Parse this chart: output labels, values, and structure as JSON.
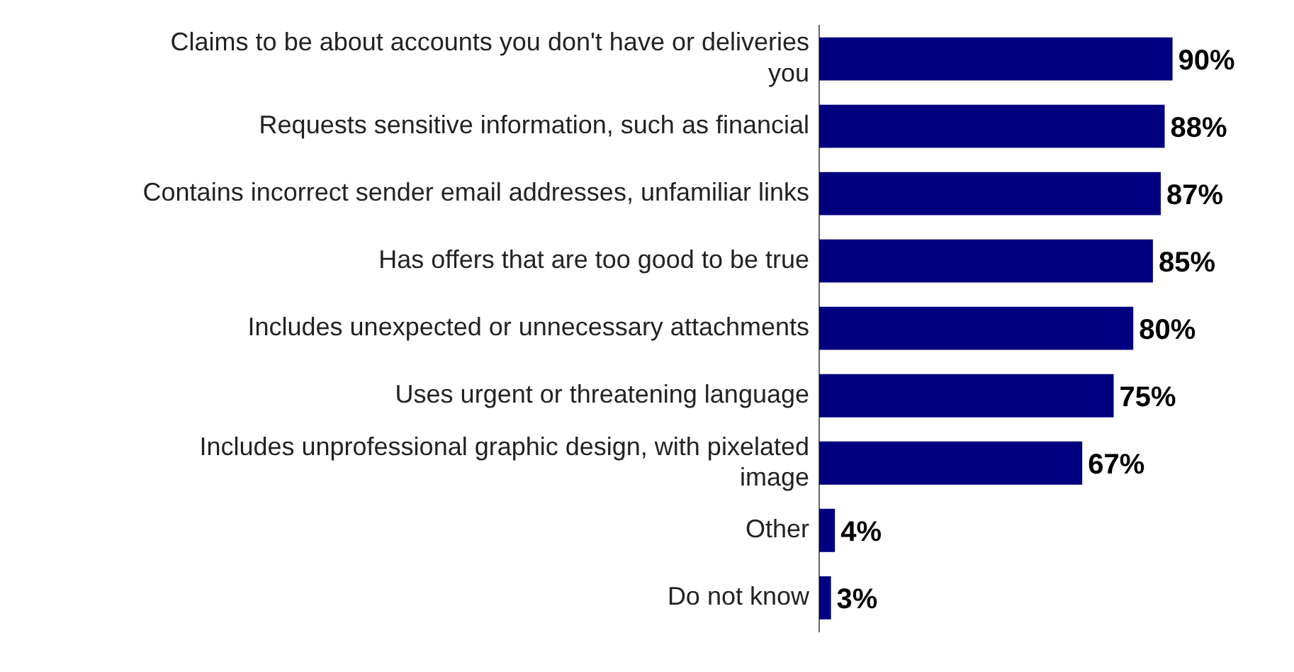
{
  "chart_data": {
    "type": "bar",
    "orientation": "horizontal",
    "categories": [
      "Claims to be about accounts you don't have or deliveries you",
      "Requests sensitive information, such as financial",
      "Contains incorrect sender email addresses, unfamiliar links",
      "Has offers that are too good to be true",
      "Includes unexpected or unnecessary attachments",
      "Uses urgent or threatening language",
      "Includes unprofessional graphic design, with pixelated image",
      "Other",
      "Do not know"
    ],
    "values": [
      90,
      88,
      87,
      85,
      80,
      75,
      67,
      4,
      3
    ],
    "value_labels": [
      "90%",
      "88%",
      "87%",
      "85%",
      "80%",
      "75%",
      "67%",
      "4%",
      "3%"
    ],
    "color": "#000080",
    "legend": false
  }
}
